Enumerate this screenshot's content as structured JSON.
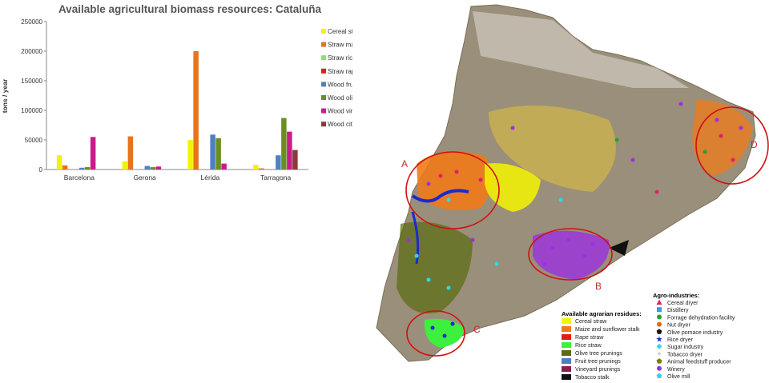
{
  "chart_data": {
    "type": "bar",
    "title": "Available agricultural biomass resources: Cataluña",
    "xlabel": "",
    "ylabel": "tons / year",
    "ylim": [
      0,
      250000
    ],
    "yticks": [
      "0",
      "50000",
      "100000",
      "150000",
      "200000",
      "250000"
    ],
    "categories": [
      "Barcelona",
      "Gerona",
      "Lérida",
      "Tarragona"
    ],
    "legend_position": "right",
    "grid": false,
    "series": [
      {
        "name": "Cereal straw",
        "color": "#f2f20a",
        "values": [
          24000,
          14000,
          50000,
          8000
        ]
      },
      {
        "name": "Straw maize+sunf",
        "color": "#e8731b",
        "values": [
          7000,
          56000,
          200000,
          2000
        ]
      },
      {
        "name": "Straw rice",
        "color": "#77e777",
        "values": [
          0,
          0,
          0,
          0
        ]
      },
      {
        "name": "Straw rape+seeds",
        "color": "#e01e1e",
        "values": [
          0,
          0,
          0,
          0
        ]
      },
      {
        "name": "Wood fruit+nuts",
        "color": "#4f81bd",
        "values": [
          3000,
          6000,
          59000,
          24000
        ]
      },
      {
        "name": "Wood olive",
        "color": "#6b8e23",
        "values": [
          4000,
          4000,
          53000,
          87000
        ]
      },
      {
        "name": "Wood vineyard",
        "color": "#cc1a8c",
        "values": [
          55000,
          5000,
          10000,
          64000
        ]
      },
      {
        "name": "Wood citric",
        "color": "#8b3a3a",
        "values": [
          0,
          0,
          0,
          33000
        ]
      }
    ]
  },
  "map": {
    "region_labels": [
      "A",
      "B",
      "C",
      "D"
    ],
    "residues_legend": {
      "title": "Available agrarian residues:",
      "items": [
        {
          "label": "Cereal straw",
          "color": "#f5f500"
        },
        {
          "label": "Maize and sunflower stalk",
          "color": "#f07a1a"
        },
        {
          "label": "Rape straw",
          "color": "#e21b1b"
        },
        {
          "label": "Rice straw",
          "color": "#3ef03e"
        },
        {
          "label": "Olive tree prunings",
          "color": "#5a6b10"
        },
        {
          "label": "Fruit tree prunings",
          "color": "#4a7fc0"
        },
        {
          "label": "Vineyard prunings",
          "color": "#8b1f4a"
        },
        {
          "label": "Tobacco stalk",
          "color": "#111111"
        }
      ]
    },
    "agro_legend": {
      "title": "Agro-industries:",
      "items": [
        {
          "label": "Cereal dryer",
          "color": "#e0206a",
          "icon": "triangle"
        },
        {
          "label": "Distillery",
          "color": "#3a9be0",
          "icon": "square"
        },
        {
          "label": "Forrage dehydration facility",
          "color": "#2aa02a",
          "icon": "circle"
        },
        {
          "label": "Nut dryer",
          "color": "#e06a10",
          "icon": "circle"
        },
        {
          "label": "Olive pomace industry",
          "color": "#111111",
          "icon": "pentagon"
        },
        {
          "label": "Rice dryer",
          "color": "#1a2ad0",
          "icon": "star"
        },
        {
          "label": "Sugar industry",
          "color": "#30d8e8",
          "icon": "diamond"
        },
        {
          "label": "Tobacco dryer",
          "color": "#999999",
          "icon": "cross"
        },
        {
          "label": "Animal feedstuff producer",
          "color": "#7a7a10",
          "icon": "pentagon"
        },
        {
          "label": "Winery",
          "color": "#9b30e0",
          "icon": "circle"
        },
        {
          "label": "Olive mill",
          "color": "#30d8e8",
          "icon": "pentagon"
        }
      ]
    }
  }
}
